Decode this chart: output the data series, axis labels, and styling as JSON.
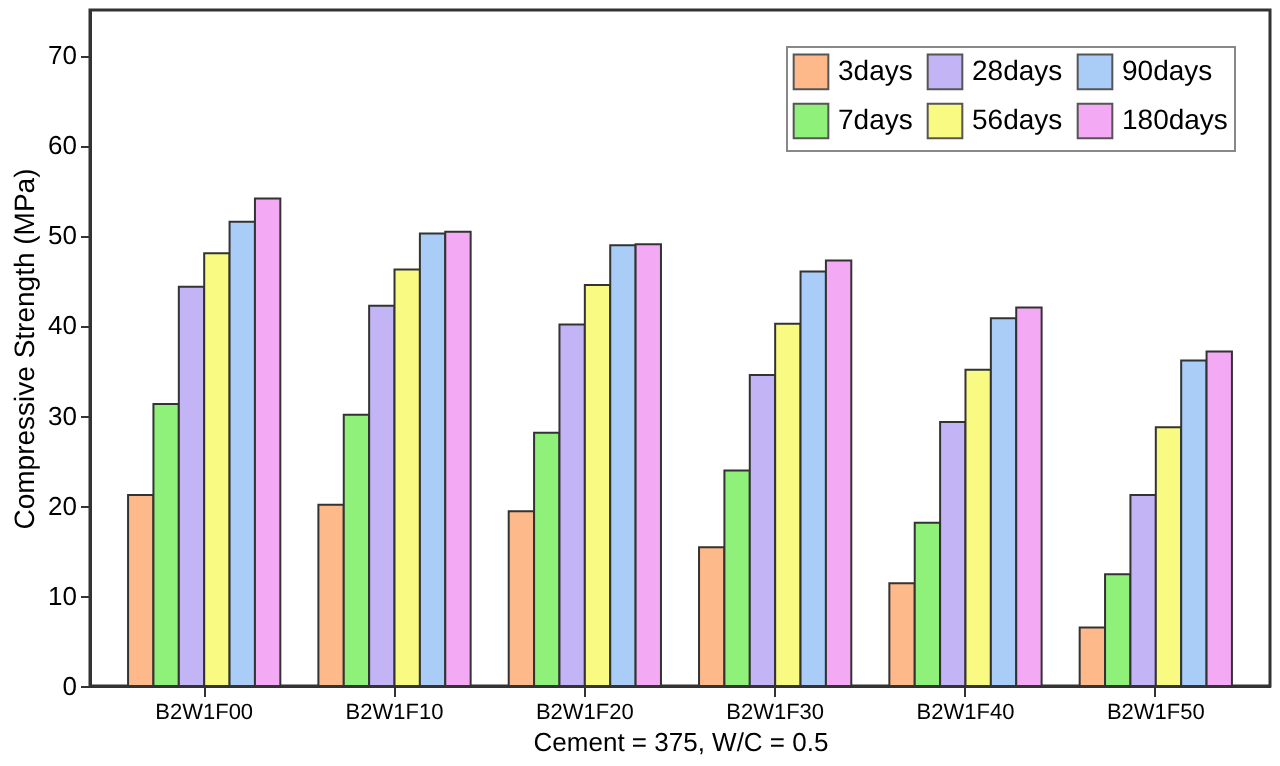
{
  "chart_data": {
    "type": "bar",
    "xlabel": "Cement = 375, W/C = 0.5",
    "ylabel": "Compressive Strength (MPa)",
    "categories": [
      "B2W1F00",
      "B2W1F10",
      "B2W1F20",
      "B2W1F30",
      "B2W1F40",
      "B2W1F50"
    ],
    "series": [
      {
        "name": "3days",
        "color": "#fdb98a",
        "values": [
          21.2,
          20.1,
          19.4,
          15.4,
          11.4,
          6.5
        ]
      },
      {
        "name": "7days",
        "color": "#8ff07a",
        "values": [
          31.3,
          30.1,
          28.1,
          23.9,
          18.1,
          12.4
        ]
      },
      {
        "name": "28days",
        "color": "#c2b4f5",
        "values": [
          44.3,
          42.2,
          40.1,
          34.5,
          29.3,
          21.2
        ]
      },
      {
        "name": "56days",
        "color": "#f8fa82",
        "values": [
          48.0,
          46.2,
          44.5,
          40.2,
          35.1,
          28.7
        ]
      },
      {
        "name": "90days",
        "color": "#a9cdf7",
        "values": [
          51.5,
          50.2,
          48.9,
          46.0,
          40.8,
          36.1
        ]
      },
      {
        "name": "180days",
        "color": "#f3a9f3",
        "values": [
          54.1,
          50.4,
          49.0,
          47.2,
          42.0,
          37.1
        ]
      }
    ],
    "ylim": [
      0,
      75
    ],
    "yticks": [
      0,
      10,
      20,
      30,
      40,
      50,
      60,
      70
    ],
    "grid": false,
    "legend": "top right"
  }
}
